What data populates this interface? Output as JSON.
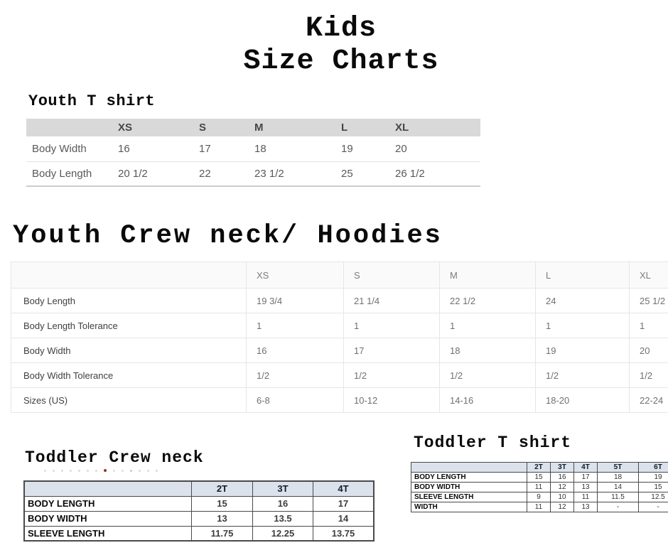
{
  "title": {
    "line1": "Kids",
    "line2": "Size Charts"
  },
  "youth_tshirt": {
    "heading": "Youth T shirt",
    "columns": [
      "",
      "XS",
      "S",
      "M",
      "L",
      "XL"
    ],
    "rows": [
      {
        "label": "Body Width",
        "values": [
          "16",
          "17",
          "18",
          "19",
          "20"
        ]
      },
      {
        "label": "Body Length",
        "values": [
          "20 1/2",
          "22",
          "23 1/2",
          "25",
          "26 1/2"
        ]
      }
    ]
  },
  "youth_crew": {
    "heading": "Youth Crew neck/ Hoodies",
    "columns": [
      "",
      "XS",
      "S",
      "M",
      "L",
      "XL"
    ],
    "rows": [
      {
        "label": "Body Length",
        "values": [
          "19 3/4",
          "21 1/4",
          "22 1/2",
          "24",
          "25 1/2"
        ]
      },
      {
        "label": "Body Length Tolerance",
        "values": [
          "1",
          "1",
          "1",
          "1",
          "1"
        ]
      },
      {
        "label": "Body Width",
        "values": [
          "16",
          "17",
          "18",
          "19",
          "20"
        ]
      },
      {
        "label": "Body Width Tolerance",
        "values": [
          "1/2",
          "1/2",
          "1/2",
          "1/2",
          "1/2"
        ]
      },
      {
        "label": "Sizes (US)",
        "values": [
          "6-8",
          "10-12",
          "14-16",
          "18-20",
          "22-24"
        ]
      }
    ]
  },
  "toddler_crew": {
    "heading": "Toddler Crew neck",
    "columns": [
      "",
      "2T",
      "3T",
      "4T"
    ],
    "rows": [
      {
        "label": "BODY LENGTH",
        "values": [
          "15",
          "16",
          "17"
        ]
      },
      {
        "label": "BODY WIDTH",
        "values": [
          "13",
          "13.5",
          "14"
        ]
      },
      {
        "label": "SLEEVE LENGTH",
        "values": [
          "11.75",
          "12.25",
          "13.75"
        ]
      }
    ]
  },
  "toddler_tshirt": {
    "heading": "Toddler T shirt",
    "columns": [
      "",
      "2T",
      "3T",
      "4T",
      "5T",
      "6T"
    ],
    "rows": [
      {
        "label": "BODY LENGTH",
        "values": [
          "15",
          "16",
          "17",
          "18",
          "19"
        ]
      },
      {
        "label": "BODY WIDTH",
        "values": [
          "11",
          "12",
          "13",
          "14",
          "15"
        ]
      },
      {
        "label": "SLEEVE LENGTH",
        "values": [
          "9",
          "10",
          "11",
          "11.5",
          "12.5"
        ]
      },
      {
        "label": "WIDTH",
        "values": [
          "11",
          "12",
          "13",
          "-",
          "-"
        ]
      }
    ]
  },
  "colors": {
    "youth_tshirt_header_bg": "#d9d9d9",
    "toddler_header_bg": "#dbe2eb",
    "heading_text": "#0a0a0a",
    "table_text_gray": "#595959"
  }
}
